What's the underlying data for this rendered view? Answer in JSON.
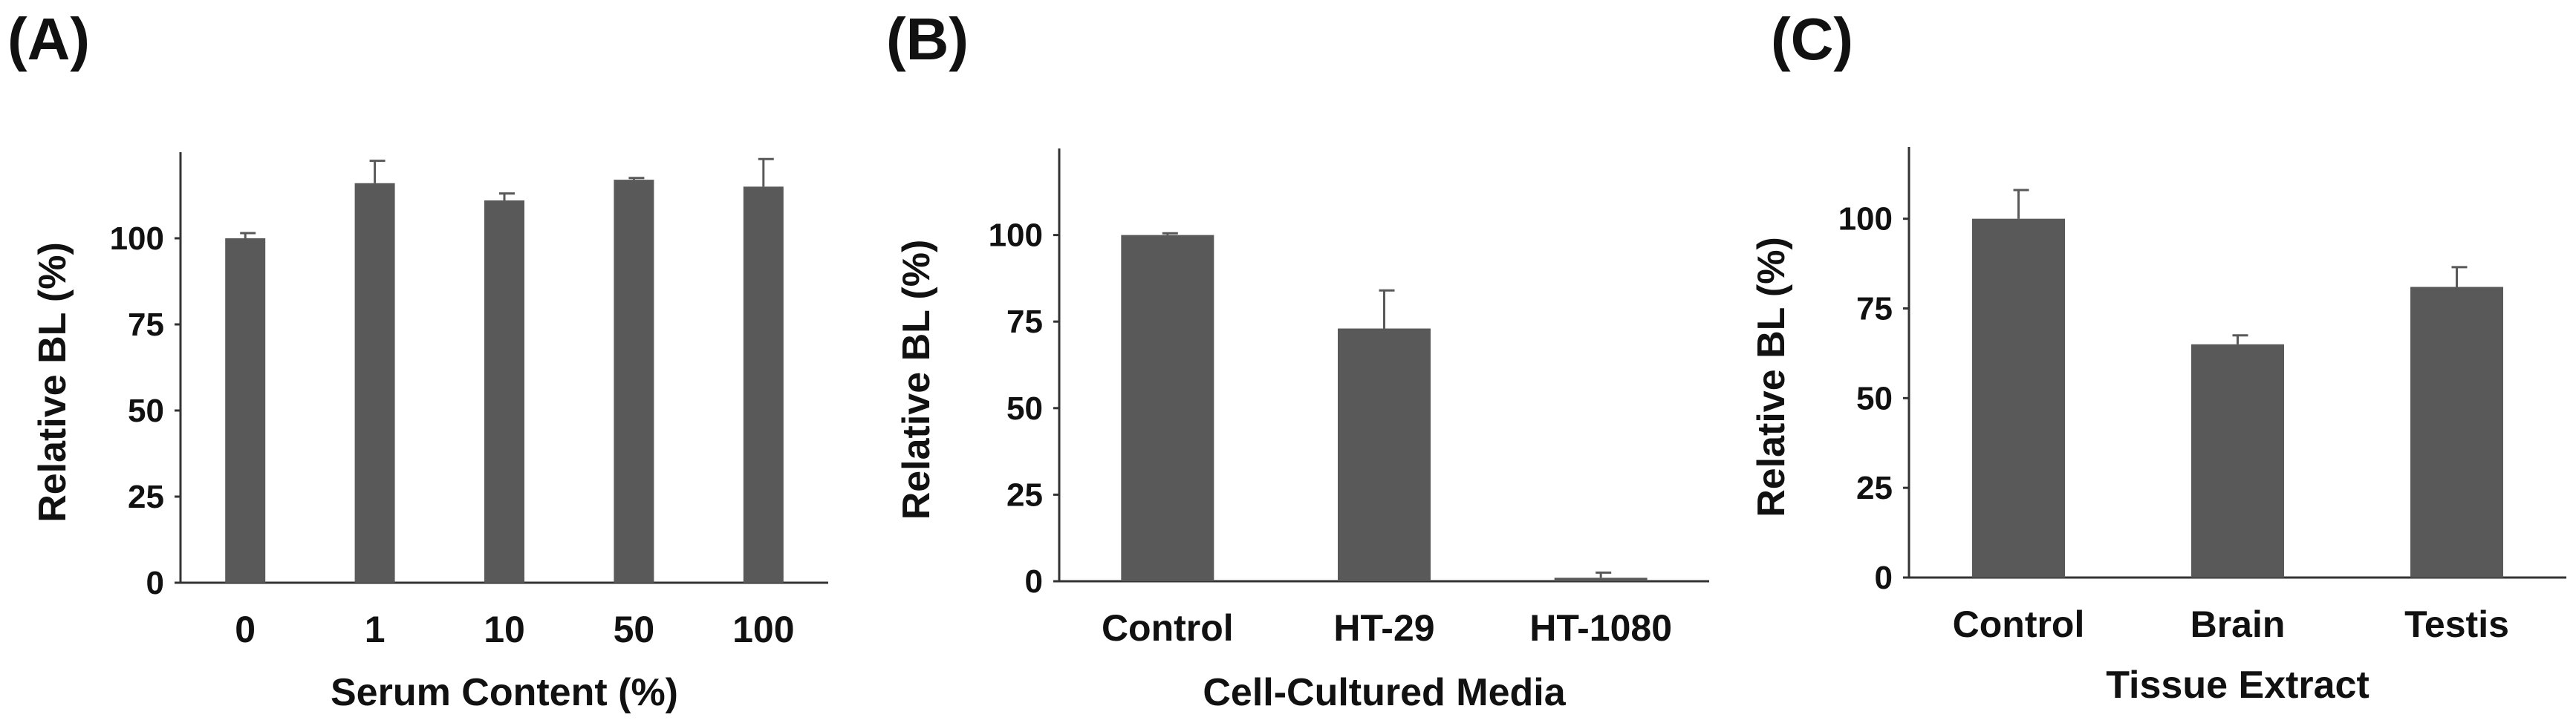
{
  "chart_data": [
    {
      "type": "bar",
      "panel_label": "(A)",
      "categories": [
        "0",
        "1",
        "10",
        "50",
        "100"
      ],
      "values": [
        100,
        116,
        111,
        117,
        115
      ],
      "errors": [
        1.5,
        6.5,
        2,
        0.5,
        8
      ],
      "xlabel": "Serum Content (%)",
      "ylabel": "Relative BL (%)",
      "ylim": [
        0,
        125
      ],
      "yticks": [
        0,
        25,
        50,
        75,
        100
      ],
      "color": "#595959"
    },
    {
      "type": "bar",
      "panel_label": "(B)",
      "categories": [
        "Control",
        "HT-29",
        "HT-1080"
      ],
      "values": [
        100,
        73,
        1
      ],
      "errors": [
        0.5,
        11,
        1.5
      ],
      "xlabel": "Cell-Cultured Media",
      "ylabel": "Relative BL (%)",
      "ylim": [
        0,
        125
      ],
      "yticks": [
        0,
        25,
        50,
        75,
        100
      ],
      "color": "#595959"
    },
    {
      "type": "bar",
      "panel_label": "(C)",
      "categories": [
        "Control",
        "Brain",
        "Testis"
      ],
      "values": [
        100,
        65,
        81
      ],
      "errors": [
        8,
        2.5,
        5.5
      ],
      "xlabel": "Tissue Extract",
      "ylabel": "Relative BL (%)",
      "ylim": [
        0,
        120
      ],
      "yticks": [
        0,
        25,
        50,
        75,
        100
      ],
      "color": "#595959"
    }
  ]
}
